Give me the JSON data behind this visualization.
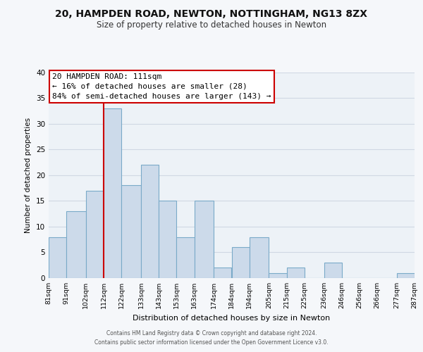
{
  "title_line1": "20, HAMPDEN ROAD, NEWTON, NOTTINGHAM, NG13 8ZX",
  "title_line2": "Size of property relative to detached houses in Newton",
  "xlabel": "Distribution of detached houses by size in Newton",
  "ylabel": "Number of detached properties",
  "bin_edges": [
    81,
    91,
    102,
    112,
    122,
    133,
    143,
    153,
    163,
    174,
    184,
    194,
    205,
    215,
    225,
    236,
    246,
    256,
    266,
    277,
    287
  ],
  "bin_labels": [
    "81sqm",
    "91sqm",
    "102sqm",
    "112sqm",
    "122sqm",
    "133sqm",
    "143sqm",
    "153sqm",
    "163sqm",
    "174sqm",
    "184sqm",
    "194sqm",
    "205sqm",
    "215sqm",
    "225sqm",
    "236sqm",
    "246sqm",
    "256sqm",
    "266sqm",
    "277sqm",
    "287sqm"
  ],
  "values": [
    8,
    13,
    17,
    33,
    18,
    22,
    15,
    8,
    15,
    2,
    6,
    8,
    1,
    2,
    0,
    3,
    0,
    0,
    0,
    1
  ],
  "bar_color": "#ccdaea",
  "bar_edge_color": "#7aaac8",
  "vline_x": 112,
  "vline_color": "#cc0000",
  "annotation_text": "20 HAMPDEN ROAD: 111sqm\n← 16% of detached houses are smaller (28)\n84% of semi-detached houses are larger (143) →",
  "annotation_box_color": "#ffffff",
  "annotation_box_edge_color": "#cc0000",
  "ylim": [
    0,
    40
  ],
  "yticks": [
    0,
    5,
    10,
    15,
    20,
    25,
    30,
    35,
    40
  ],
  "grid_color": "#d0d8e4",
  "background_color": "#edf2f7",
  "fig_background_color": "#f5f7fa",
  "footer_line1": "Contains HM Land Registry data © Crown copyright and database right 2024.",
  "footer_line2": "Contains public sector information licensed under the Open Government Licence v3.0."
}
